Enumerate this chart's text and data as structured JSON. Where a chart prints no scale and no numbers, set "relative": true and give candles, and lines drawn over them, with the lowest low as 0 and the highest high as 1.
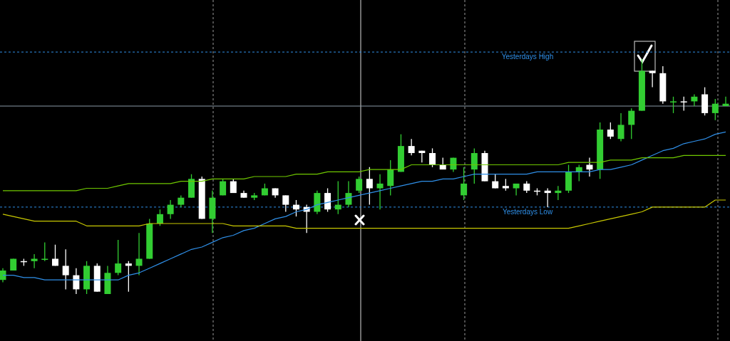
{
  "chart_data": {
    "type": "candlestick",
    "relative": true,
    "categories": [
      null,
      null,
      null,
      null,
      null,
      null,
      null,
      null,
      null,
      null,
      null,
      null,
      null,
      null,
      null,
      null,
      null,
      null,
      null,
      null,
      null,
      null,
      null,
      null,
      null,
      null,
      null,
      null,
      null,
      null,
      null,
      null,
      null,
      null,
      null,
      null,
      null,
      null,
      null,
      null,
      null,
      null,
      null,
      null,
      null,
      null,
      null,
      null,
      null,
      null,
      null,
      null,
      null,
      null,
      null,
      null,
      null,
      null,
      null,
      null,
      null,
      null,
      null,
      null,
      null,
      null,
      null,
      null,
      null,
      null
    ],
    "ohlc": [
      [
        0.06,
        0.11,
        0.05,
        0.1
      ],
      [
        0.1,
        0.15,
        0.1,
        0.15
      ],
      [
        0.14,
        0.15,
        0.12,
        0.14
      ],
      [
        0.14,
        0.17,
        0.11,
        0.15
      ],
      [
        0.15,
        0.22,
        0.14,
        0.15
      ],
      [
        0.15,
        0.21,
        0.12,
        0.12
      ],
      [
        0.12,
        0.19,
        0.02,
        0.08
      ],
      [
        0.08,
        0.11,
        0.0,
        0.02
      ],
      [
        0.02,
        0.14,
        0.0,
        0.12
      ],
      [
        0.12,
        0.13,
        0.01,
        0.01
      ],
      [
        0.0,
        0.12,
        0.0,
        0.09
      ],
      [
        0.09,
        0.23,
        0.08,
        0.13
      ],
      [
        0.13,
        0.14,
        0.01,
        0.12
      ],
      [
        0.12,
        0.26,
        0.08,
        0.15
      ],
      [
        0.15,
        0.32,
        0.15,
        0.3
      ],
      [
        0.3,
        0.36,
        0.29,
        0.34
      ],
      [
        0.34,
        0.4,
        0.32,
        0.38
      ],
      [
        0.38,
        0.42,
        0.37,
        0.41
      ],
      [
        0.41,
        0.51,
        0.41,
        0.49
      ],
      [
        0.49,
        0.5,
        0.32,
        0.32
      ],
      [
        0.32,
        0.44,
        0.26,
        0.41
      ],
      [
        0.42,
        0.49,
        0.42,
        0.48
      ],
      [
        0.48,
        0.49,
        0.43,
        0.43
      ],
      [
        0.43,
        0.44,
        0.41,
        0.41
      ],
      [
        0.41,
        0.43,
        0.4,
        0.42
      ],
      [
        0.42,
        0.47,
        0.42,
        0.45
      ],
      [
        0.45,
        0.45,
        0.41,
        0.42
      ],
      [
        0.42,
        0.42,
        0.35,
        0.38
      ],
      [
        0.38,
        0.4,
        0.33,
        0.36
      ],
      [
        0.37,
        0.38,
        0.26,
        0.35
      ],
      [
        0.35,
        0.44,
        0.34,
        0.43
      ],
      [
        0.43,
        0.45,
        0.35,
        0.36
      ],
      [
        0.36,
        0.48,
        0.34,
        0.38
      ],
      [
        0.38,
        0.48,
        0.37,
        0.43
      ],
      [
        0.44,
        0.5,
        0.43,
        0.49
      ],
      [
        0.49,
        0.54,
        0.38,
        0.45
      ],
      [
        0.45,
        0.51,
        0.36,
        0.47
      ],
      [
        0.46,
        0.57,
        0.42,
        0.53
      ],
      [
        0.52,
        0.68,
        0.52,
        0.63
      ],
      [
        0.63,
        0.66,
        0.59,
        0.6
      ],
      [
        0.61,
        0.61,
        0.56,
        0.6
      ],
      [
        0.6,
        0.62,
        0.54,
        0.55
      ],
      [
        0.55,
        0.58,
        0.53,
        0.53
      ],
      [
        0.53,
        0.58,
        0.52,
        0.58
      ],
      [
        0.42,
        0.54,
        0.4,
        0.47
      ],
      [
        0.53,
        0.62,
        0.47,
        0.6
      ],
      [
        0.6,
        0.61,
        0.48,
        0.48
      ],
      [
        0.48,
        0.51,
        0.45,
        0.45
      ],
      [
        0.46,
        0.49,
        0.44,
        0.45
      ],
      [
        0.45,
        0.47,
        0.42,
        0.47
      ],
      [
        0.47,
        0.48,
        0.43,
        0.44
      ],
      [
        0.44,
        0.45,
        0.42,
        0.44
      ],
      [
        0.44,
        0.45,
        0.37,
        0.43
      ],
      [
        0.43,
        0.46,
        0.4,
        0.44
      ],
      [
        0.44,
        0.55,
        0.43,
        0.52
      ],
      [
        0.52,
        0.55,
        0.48,
        0.54
      ],
      [
        0.55,
        0.58,
        0.5,
        0.53
      ],
      [
        0.53,
        0.73,
        0.49,
        0.7
      ],
      [
        0.7,
        0.73,
        0.66,
        0.67
      ],
      [
        0.66,
        0.77,
        0.65,
        0.72
      ],
      [
        0.72,
        0.79,
        0.66,
        0.78
      ],
      [
        0.78,
        1,
        0.78,
        0.95
      ],
      [
        0.95,
        0.95,
        0.88,
        0.94
      ],
      [
        0.94,
        0.97,
        0.81,
        0.82
      ],
      [
        0.82,
        0.84,
        0.77,
        0.82
      ],
      [
        0.82,
        0.84,
        0.78,
        0.82
      ],
      [
        0.82,
        0.85,
        0.8,
        0.84
      ],
      [
        0.85,
        0.88,
        0.76,
        0.77
      ],
      [
        0.77,
        0.83,
        0.74,
        0.81
      ],
      [
        0.8,
        0.84,
        0.8,
        0.81
      ]
    ],
    "colors": [
      "#32cd32",
      "#32cd32",
      "#ffffff",
      "#32cd32",
      "#32cd32",
      "#ffffff",
      "#ffffff",
      "#ffffff",
      "#32cd32",
      "#ffffff",
      "#32cd32",
      "#32cd32",
      "#ffffff",
      "#32cd32",
      "#32cd32",
      "#32cd32",
      "#32cd32",
      "#32cd32",
      "#32cd32",
      "#ffffff",
      "#32cd32",
      "#32cd32",
      "#ffffff",
      "#ffffff",
      "#32cd32",
      "#32cd32",
      "#ffffff",
      "#ffffff",
      "#ffffff",
      "#ffffff",
      "#32cd32",
      "#ffffff",
      "#32cd32",
      "#32cd32",
      "#32cd32",
      "#ffffff",
      "#32cd32",
      "#32cd32",
      "#32cd32",
      "#ffffff",
      "#ffffff",
      "#ffffff",
      "#ffffff",
      "#32cd32",
      "#32cd32",
      "#32cd32",
      "#ffffff",
      "#ffffff",
      "#ffffff",
      "#32cd32",
      "#ffffff",
      "#ffffff",
      "#ffffff",
      "#32cd32",
      "#32cd32",
      "#32cd32",
      "#ffffff",
      "#32cd32",
      "#ffffff",
      "#32cd32",
      "#32cd32",
      "#32cd32",
      "#ffffff",
      "#ffffff",
      "#32cd32",
      "#ffffff",
      "#32cd32",
      "#ffffff",
      "#32cd32",
      "#32cd32"
    ],
    "series": [
      {
        "type": "line",
        "color": "#2f8fe8",
        "values": [
          0.08,
          0.08,
          0.07,
          0.07,
          0.06,
          0.06,
          0.06,
          0.06,
          0.06,
          0.06,
          0.06,
          0.06,
          0.08,
          0.09,
          0.11,
          0.13,
          0.15,
          0.17,
          0.19,
          0.2,
          0.22,
          0.24,
          0.25,
          0.27,
          0.28,
          0.3,
          0.32,
          0.33,
          0.35,
          0.36,
          0.38,
          0.39,
          0.4,
          0.41,
          0.42,
          0.43,
          0.44,
          0.45,
          0.46,
          0.47,
          0.48,
          0.48,
          0.49,
          0.49,
          0.5,
          0.51,
          0.51,
          0.51,
          0.51,
          0.51,
          0.51,
          0.52,
          0.52,
          0.52,
          0.52,
          0.52,
          0.52,
          0.53,
          0.53,
          0.54,
          0.55,
          0.57,
          0.59,
          0.61,
          0.62,
          0.64,
          0.65,
          0.66,
          0.68,
          0.69
        ]
      },
      {
        "type": "line",
        "color": "#6fc800",
        "values": [
          0.44,
          0.44,
          0.44,
          0.44,
          0.44,
          0.44,
          0.44,
          0.44,
          0.45,
          0.45,
          0.45,
          0.46,
          0.47,
          0.47,
          0.47,
          0.47,
          0.47,
          0.48,
          0.48,
          0.48,
          0.49,
          0.49,
          0.49,
          0.49,
          0.5,
          0.5,
          0.5,
          0.5,
          0.51,
          0.51,
          0.51,
          0.52,
          0.52,
          0.52,
          0.52,
          0.53,
          0.53,
          0.53,
          0.53,
          0.55,
          0.55,
          0.55,
          0.55,
          0.55,
          0.55,
          0.55,
          0.55,
          0.55,
          0.55,
          0.55,
          0.55,
          0.55,
          0.55,
          0.55,
          0.56,
          0.56,
          0.56,
          0.56,
          0.57,
          0.57,
          0.57,
          0.58,
          0.58,
          0.58,
          0.58,
          0.59,
          0.59,
          0.59,
          0.59,
          0.59
        ]
      },
      {
        "type": "line",
        "color": "#c8c800",
        "values": [
          0.34,
          0.33,
          0.32,
          0.31,
          0.31,
          0.31,
          0.31,
          0.31,
          0.29,
          0.29,
          0.29,
          0.29,
          0.29,
          0.29,
          0.3,
          0.3,
          0.3,
          0.3,
          0.3,
          0.3,
          0.3,
          0.3,
          0.29,
          0.29,
          0.29,
          0.29,
          0.29,
          0.29,
          0.28,
          0.28,
          0.28,
          0.28,
          0.28,
          0.28,
          0.28,
          0.28,
          0.28,
          0.28,
          0.28,
          0.28,
          0.28,
          0.28,
          0.28,
          0.28,
          0.28,
          0.28,
          0.28,
          0.28,
          0.28,
          0.28,
          0.28,
          0.28,
          0.28,
          0.28,
          0.28,
          0.29,
          0.3,
          0.31,
          0.32,
          0.33,
          0.34,
          0.35,
          0.37,
          0.37,
          0.37,
          0.37,
          0.37,
          0.37,
          0.4,
          0.4
        ]
      }
    ],
    "ref_lines": [
      {
        "axis": "y",
        "value": 1.03,
        "label": "Yesterdays High",
        "color": "#2f8fe8",
        "line_style": "dotted"
      },
      {
        "axis": "y",
        "value": 0.37,
        "label": "Yesterdays Low",
        "color": "#2f8fe8",
        "line_style": "dotted"
      },
      {
        "axis": "y",
        "value": 0.8,
        "color": "#8a9aa8",
        "line_style": "solid"
      }
    ]
  }
}
